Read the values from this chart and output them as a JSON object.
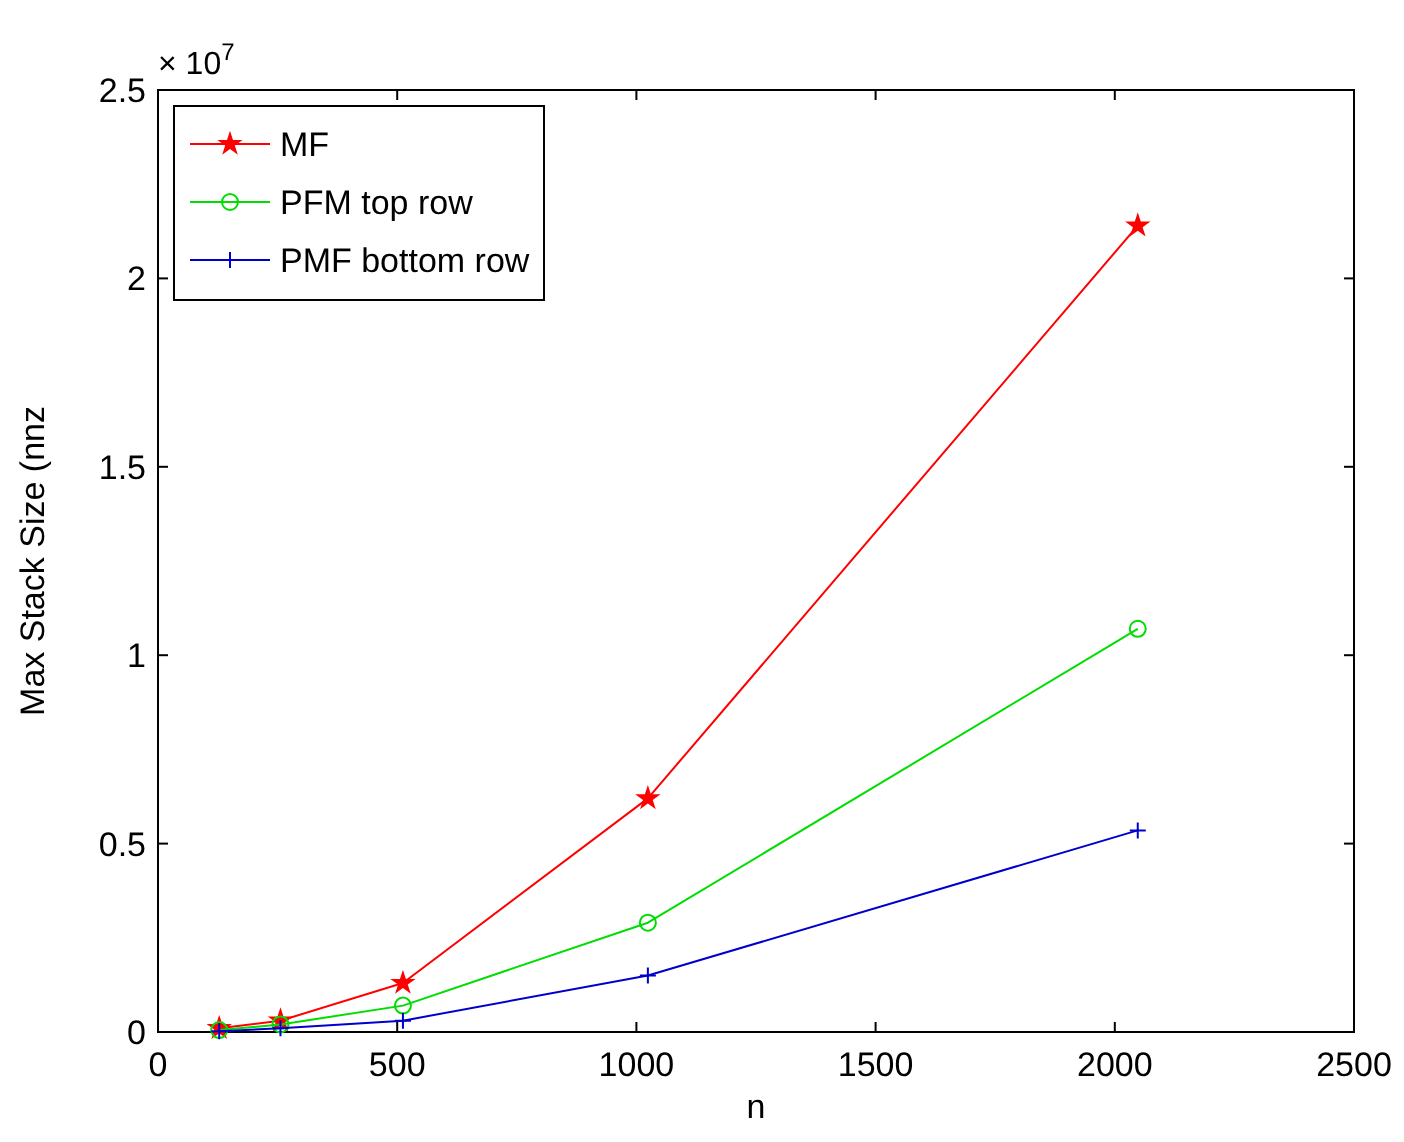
{
  "chart_data": {
    "type": "line",
    "xlabel": "n",
    "ylabel": "Max Stack Size (nnz",
    "annotations": [
      "× 10$^{7}$"
    ],
    "x": [
      128,
      256,
      512,
      1024,
      2048
    ],
    "series": [
      {
        "name": "MF",
        "color": "#ff0000",
        "marker": "star",
        "values": [
          0.01,
          0.03,
          0.13,
          0.62,
          2.14
        ]
      },
      {
        "name": "PFM top row",
        "color": "#00dd00",
        "marker": "circle",
        "values": [
          0.005,
          0.02,
          0.07,
          0.29,
          1.07
        ]
      },
      {
        "name": "PMF bottom row",
        "color": "#0000cc",
        "marker": "cross",
        "values": [
          0.002,
          0.01,
          0.03,
          0.15,
          0.535
        ]
      }
    ],
    "xlim": [
      0,
      2500
    ],
    "xticks": [
      0,
      500,
      1000,
      1500,
      2000,
      2500
    ],
    "ylim": [
      0,
      2.5
    ],
    "yticks": [
      0,
      0.5,
      1,
      1.5,
      2,
      2.5
    ],
    "grid": false,
    "legend": "top left",
    "line_style": "solid"
  }
}
